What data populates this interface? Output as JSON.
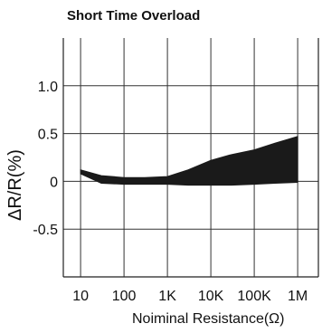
{
  "chart_data": {
    "type": "area",
    "title": "Short Time Overload",
    "xlabel": "Noiminal Resistance(Ω)",
    "ylabel": "ΔR/R(%)",
    "x_scale": "log",
    "x_ticks": [
      {
        "value": 10,
        "label": "10"
      },
      {
        "value": 100,
        "label": "100"
      },
      {
        "value": 1000,
        "label": "1K"
      },
      {
        "value": 10000,
        "label": "10K"
      },
      {
        "value": 100000,
        "label": "100K"
      },
      {
        "value": 1000000,
        "label": "1M"
      }
    ],
    "y_ticks": [
      {
        "value": 1.0,
        "label": "1.0"
      },
      {
        "value": 0.5,
        "label": "0.5"
      },
      {
        "value": 0,
        "label": "0"
      },
      {
        "value": -0.5,
        "label": "-0.5"
      }
    ],
    "xlim": [
      4,
      3000000
    ],
    "ylim": [
      -1.0,
      1.5
    ],
    "grid": true,
    "band": {
      "x": [
        10,
        30,
        100,
        300,
        1000,
        3000,
        10000,
        30000,
        100000,
        300000,
        1000000
      ],
      "upper": [
        0.12,
        0.06,
        0.04,
        0.04,
        0.05,
        0.12,
        0.22,
        0.28,
        0.33,
        0.4,
        0.47
      ],
      "lower": [
        0.08,
        -0.02,
        -0.03,
        -0.03,
        -0.03,
        -0.04,
        -0.04,
        -0.04,
        -0.03,
        -0.02,
        -0.01
      ]
    },
    "fill_color": "#1a1a1a"
  }
}
